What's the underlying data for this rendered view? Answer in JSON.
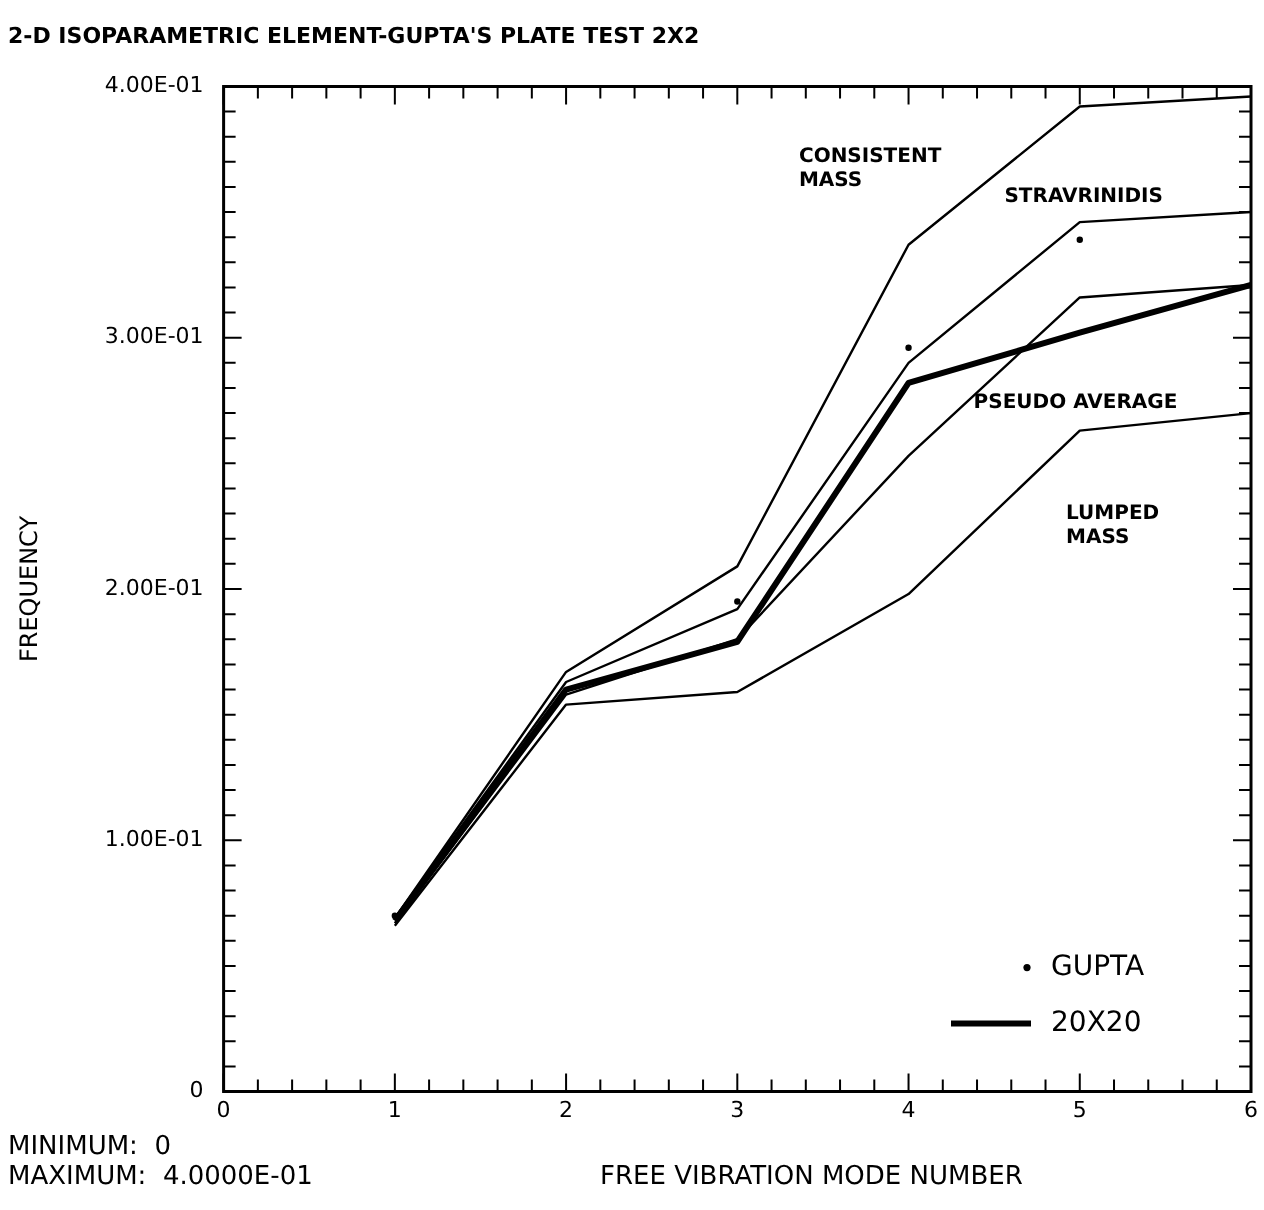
{
  "chart_data": {
    "type": "line",
    "title": "2-D ISOPARAMETRIC ELEMENT-GUPTA'S PLATE TEST 2X2",
    "xlabel": "FREE VIBRATION MODE NUMBER",
    "ylabel": "FREQUENCY",
    "x": [
      1,
      2,
      3,
      4,
      5,
      6
    ],
    "series": [
      {
        "color": "#000000",
        "values": [
          0.069,
          0.167,
          0.209,
          0.337,
          0.392,
          0.396
        ]
      },
      {
        "color": "#000000",
        "values": [
          0.069,
          0.163,
          0.192,
          0.29,
          0.346,
          0.35
        ]
      },
      {
        "color": "#000000",
        "values": [
          0.067,
          0.158,
          0.18,
          0.253,
          0.316,
          0.321
        ]
      },
      {
        "color": "#000000",
        "values": [
          0.066,
          0.154,
          0.159,
          0.198,
          0.263,
          0.27
        ]
      },
      {
        "name": "GUPTA",
        "type": "scatter",
        "color": "#000000",
        "values": [
          0.07,
          null,
          0.195,
          0.296,
          0.339,
          null
        ]
      },
      {
        "name": "20X20",
        "color": "#000000",
        "values": [
          0.068,
          0.16,
          0.179,
          0.282,
          0.302,
          0.321
        ]
      }
    ],
    "xlim": [
      0,
      6
    ],
    "xticks": [
      0,
      1,
      2,
      3,
      4,
      5,
      6
    ],
    "ylim": [
      0,
      0.4
    ],
    "yticks": [
      {
        "value": 0,
        "label": "0"
      },
      {
        "value": 0.1,
        "label": "1.00E-01"
      },
      {
        "value": 0.2,
        "label": "2.00E-01"
      },
      {
        "value": 0.3,
        "label": "3.00E-01"
      },
      {
        "value": 0.4,
        "label": "4.00E-01"
      }
    ],
    "grid": false,
    "legend": "bottom right",
    "annotations": [
      "CONSISTENT\nMASS",
      "STRAVRINIDIS",
      "PSEUDO AVERAGE",
      "LUMPED\nMASS",
      "MINIMUM:  0",
      "MAXIMUM:  4.0000E-01"
    ]
  }
}
